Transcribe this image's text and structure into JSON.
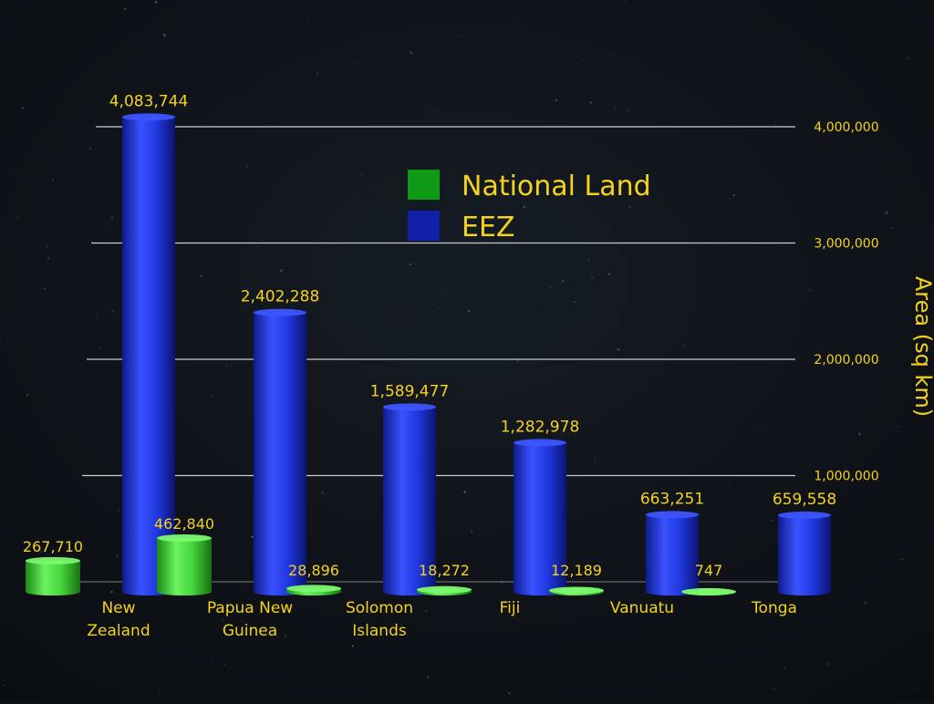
{
  "colors": {
    "background": "#0d1116",
    "text": "#f5d21c",
    "land": "#3fd43a",
    "eez": "#1c32d8",
    "grid": "#c8ccd0"
  },
  "chart_data": {
    "type": "bar",
    "title": "",
    "ylabel": "Area (sq km)",
    "xlabel": "",
    "ylim": [
      0,
      4300000
    ],
    "ytick_values": [
      1000000,
      2000000,
      3000000,
      4000000
    ],
    "ytick_labels": [
      "1,000,000",
      "2,000,000",
      "3,000,000",
      "4,000,000"
    ],
    "grid": true,
    "y_axis_side": "right",
    "legend_position": "top-center",
    "categories": [
      [
        "New",
        "Zealand"
      ],
      [
        "Papua New",
        "Guinea"
      ],
      [
        "Solomon",
        "Islands"
      ],
      [
        "Fiji"
      ],
      [
        "Vanuatu"
      ],
      [
        "Tonga"
      ]
    ],
    "series": [
      {
        "name": "National Land",
        "color": "#3fd43a",
        "values": [
          267710,
          462840,
          28896,
          18272,
          12189,
          747
        ],
        "labels": [
          "267,710",
          "462,840",
          "28,896",
          "18,272",
          "12,189",
          "747"
        ]
      },
      {
        "name": "EEZ",
        "color": "#1c32d8",
        "values": [
          4083744,
          2402288,
          1589477,
          1282978,
          663251,
          659558
        ],
        "labels": [
          "4,083,744",
          "2,402,288",
          "1,589,477",
          "1,282,978",
          "663,251",
          "659,558"
        ]
      }
    ]
  }
}
